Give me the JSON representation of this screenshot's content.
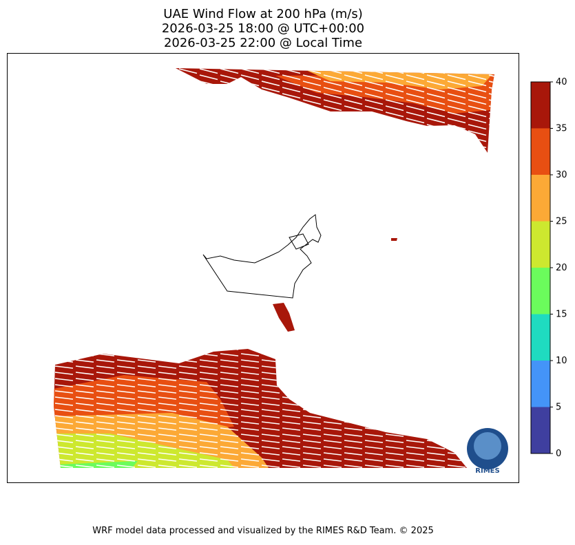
{
  "chart_data": {
    "type": "wind-map",
    "title": [
      "UAE Wind Flow at 200 hPa (m/s)",
      "2026-03-25 18:00 @ UTC+00:00",
      "2026-03-25 22:00 @ Local Time"
    ],
    "colorbar": {
      "lim": [
        0,
        40
      ],
      "ticks": [
        0,
        5,
        10,
        15,
        20,
        25,
        30,
        35,
        40
      ],
      "colors": [
        "#3f3f9f",
        "#4494f8",
        "#1fdbc0",
        "#6bfc5c",
        "#cde82f",
        "#fca936",
        "#e84f12",
        "#a8170a"
      ]
    }
  },
  "footer": "WRF model data processed and visualized by the RIMES R&D Team. © 2025",
  "logo": {
    "label": "RIMES"
  }
}
